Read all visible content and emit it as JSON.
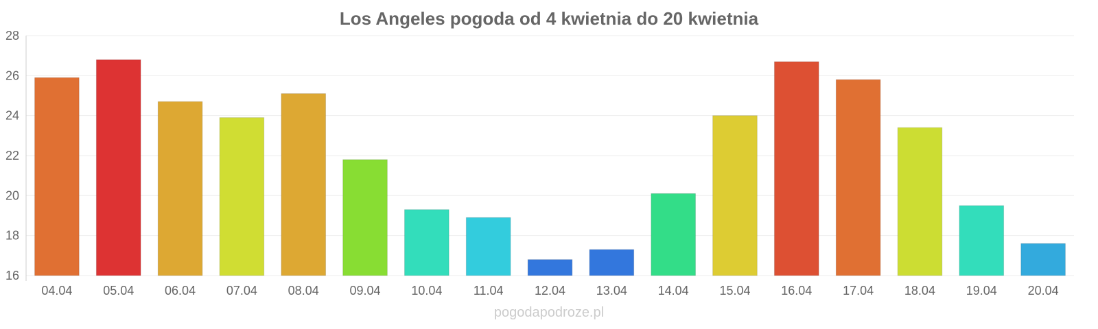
{
  "chart_data": {
    "type": "bar",
    "title": "Los Angeles pogoda od 4 kwietnia do 20 kwietnia",
    "xlabel": "",
    "ylabel": "",
    "categories": [
      "04.04",
      "05.04",
      "06.04",
      "07.04",
      "08.04",
      "09.04",
      "10.04",
      "11.04",
      "12.04",
      "13.04",
      "14.04",
      "15.04",
      "16.04",
      "17.04",
      "18.04",
      "19.04",
      "20.04"
    ],
    "values": [
      25.9,
      26.8,
      24.7,
      23.9,
      25.1,
      21.8,
      19.3,
      18.9,
      16.8,
      17.3,
      20.1,
      24.0,
      26.7,
      25.8,
      23.4,
      19.5,
      17.6
    ],
    "colors": [
      "#e07033",
      "#dd3333",
      "#dda833",
      "#d0dd33",
      "#dda833",
      "#88dd33",
      "#33ddbb",
      "#33ccdd",
      "#3377dd",
      "#3377dd",
      "#33dd88",
      "#ddcc33",
      "#dd5033",
      "#e07033",
      "#ccdd33",
      "#33ddbb",
      "#33aadd"
    ],
    "ylim": [
      16,
      28
    ],
    "yticks": [
      16,
      18,
      20,
      22,
      24,
      26,
      28
    ],
    "grid": true
  },
  "watermark": "pogodapodroze.pl"
}
